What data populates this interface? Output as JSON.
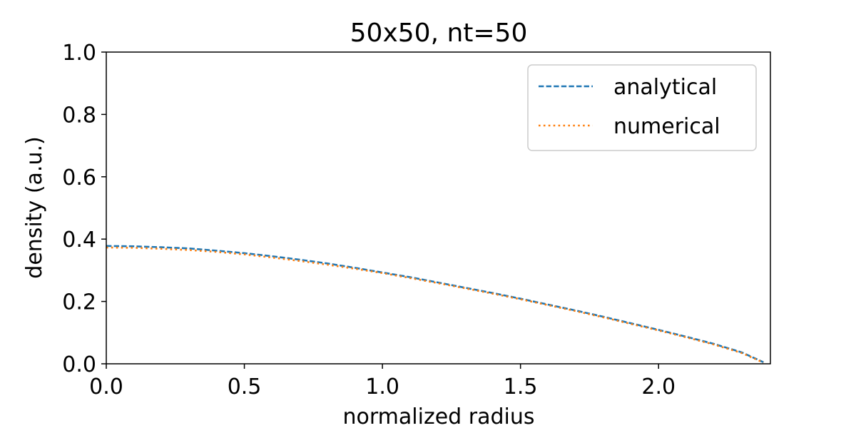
{
  "chart_data": {
    "type": "line",
    "title": "50x50, nt=50",
    "xlabel": "normalized radius",
    "ylabel": "density (a.u.)",
    "xlim": [
      0.0,
      2.405
    ],
    "ylim": [
      0.0,
      1.0
    ],
    "xticks": [
      0.0,
      0.5,
      1.0,
      1.5,
      2.0
    ],
    "yticks": [
      0.0,
      0.2,
      0.4,
      0.6,
      0.8,
      1.0
    ],
    "xtick_labels": [
      "0.0",
      "0.5",
      "1.0",
      "1.5",
      "2.0"
    ],
    "ytick_labels": [
      "0.0",
      "0.2",
      "0.4",
      "0.6",
      "0.8",
      "1.0"
    ],
    "grid": false,
    "legend_position": "top-right",
    "series": [
      {
        "name": "analytical",
        "color": "#1f77b4",
        "line_style": "dashed",
        "x": [
          0.0,
          0.1,
          0.2,
          0.3,
          0.4,
          0.5,
          0.6,
          0.7,
          0.8,
          0.9,
          1.0,
          1.1,
          1.2,
          1.3,
          1.4,
          1.5,
          1.6,
          1.7,
          1.8,
          1.9,
          2.0,
          2.1,
          2.2,
          2.3,
          2.38
        ],
        "y": [
          0.378,
          0.377,
          0.374,
          0.37,
          0.363,
          0.355,
          0.345,
          0.334,
          0.322,
          0.308,
          0.293,
          0.278,
          0.261,
          0.244,
          0.227,
          0.209,
          0.19,
          0.171,
          0.151,
          0.13,
          0.109,
          0.087,
          0.064,
          0.037,
          0.005
        ]
      },
      {
        "name": "numerical",
        "color": "#ff7f0e",
        "line_style": "dotted",
        "x": [
          0.0,
          0.1,
          0.2,
          0.3,
          0.4,
          0.5,
          0.6,
          0.7,
          0.8,
          0.9,
          1.0,
          1.1,
          1.2,
          1.3,
          1.4,
          1.5,
          1.6,
          1.7,
          1.8,
          1.9,
          2.0,
          2.1,
          2.2,
          2.3,
          2.38
        ],
        "y": [
          0.373,
          0.372,
          0.369,
          0.365,
          0.359,
          0.351,
          0.341,
          0.33,
          0.318,
          0.305,
          0.291,
          0.275,
          0.259,
          0.242,
          0.225,
          0.207,
          0.188,
          0.169,
          0.149,
          0.128,
          0.107,
          0.085,
          0.062,
          0.035,
          0.004
        ]
      }
    ]
  }
}
